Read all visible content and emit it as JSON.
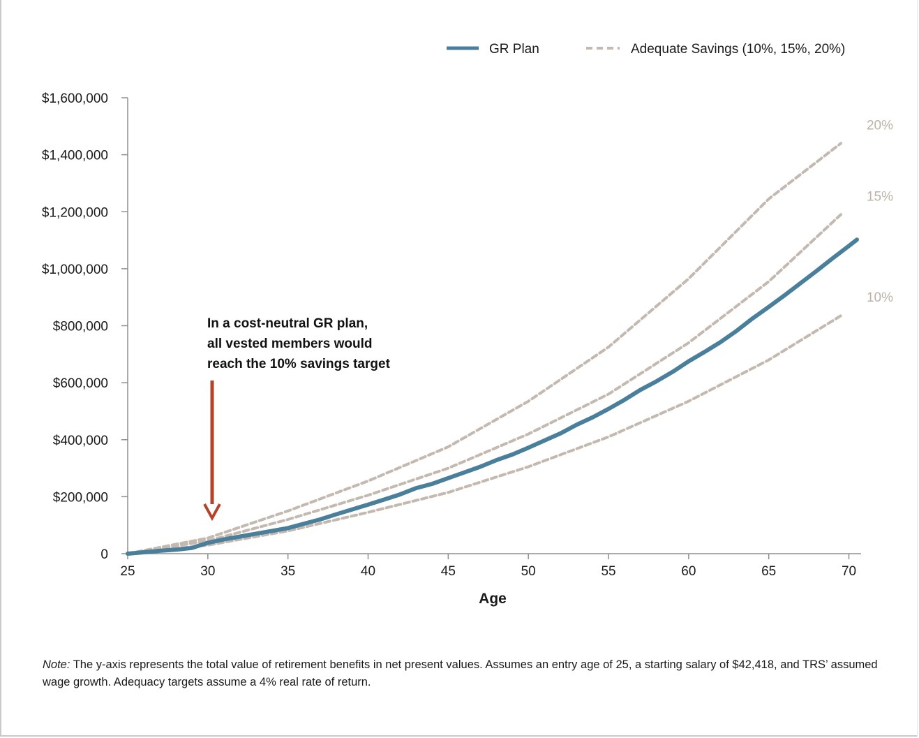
{
  "colors": {
    "gr_plan": "#4a7f9c",
    "adequate": "#c4b9b0",
    "axis": "#8f8f8f",
    "arrow": "#b5432a",
    "series_label": "#bdb2a8"
  },
  "legend": {
    "gr_plan_label": "GR Plan",
    "adequate_label": "Adequate Savings (10%, 15%, 20%)"
  },
  "annotation": {
    "lines": [
      "In a cost-neutral GR plan,",
      "all vested members would",
      "reach the 10% savings target"
    ],
    "arrow_icon": "down-arrow-icon"
  },
  "note": {
    "prefix": "Note:",
    "text": " The y-axis represents the total value of retirement benefits in net present values. Assumes an entry age of 25, a starting salary of $42,418, and TRS’ assumed wage growth. Adequacy targets assume a 4% real rate of return."
  },
  "chart_data": {
    "type": "line",
    "title": "",
    "xlabel": "Age",
    "ylabel": "",
    "xlim": [
      25,
      70.5
    ],
    "ylim": [
      0,
      1600000
    ],
    "xticks": [
      25,
      30,
      35,
      40,
      45,
      50,
      55,
      60,
      65,
      70
    ],
    "xtick_labels": [
      "25",
      "30",
      "35",
      "40",
      "45",
      "50",
      "55",
      "60",
      "65",
      "70"
    ],
    "yticks": [
      0,
      200000,
      400000,
      600000,
      800000,
      1000000,
      1200000,
      1400000,
      1600000
    ],
    "ytick_labels": [
      "0",
      "$200,000",
      "$400,000",
      "$600,000",
      "$800,000",
      "$1,000,000",
      "$1,200,000",
      "$1,400,000",
      "$1,600,000"
    ],
    "legend_position": "top-right",
    "grid": false,
    "series": [
      {
        "name": "GR Plan",
        "style": "solid",
        "x": [
          25,
          26,
          27,
          28,
          29,
          30,
          31,
          32,
          33,
          34,
          35,
          36,
          37,
          38,
          39,
          40,
          41,
          42,
          43,
          44,
          45,
          46,
          47,
          48,
          49,
          50,
          51,
          52,
          53,
          54,
          55,
          56,
          57,
          58,
          59,
          60,
          61,
          62,
          63,
          64,
          65,
          66,
          67,
          68,
          69,
          70,
          70.5
        ],
        "values": [
          0,
          5000,
          10000,
          14000,
          20000,
          38000,
          50000,
          60000,
          70000,
          80000,
          90000,
          105000,
          120000,
          138000,
          155000,
          172000,
          190000,
          208000,
          230000,
          245000,
          265000,
          285000,
          305000,
          328000,
          348000,
          372000,
          397000,
          422000,
          452000,
          478000,
          508000,
          540000,
          575000,
          605000,
          638000,
          675000,
          708000,
          743000,
          782000,
          826000,
          866000,
          907000,
          950000,
          993000,
          1037000,
          1080000,
          1102000
        ]
      },
      {
        "name": "10%",
        "style": "dashed",
        "x": [
          25,
          30,
          35,
          40,
          45,
          50,
          55,
          60,
          65,
          69.5
        ],
        "values": [
          0,
          30000,
          80000,
          145000,
          215000,
          305000,
          410000,
          535000,
          680000,
          835000
        ]
      },
      {
        "name": "15%",
        "style": "dashed",
        "x": [
          25,
          30,
          35,
          40,
          45,
          50,
          55,
          60,
          65,
          69.5
        ],
        "values": [
          0,
          45000,
          120000,
          205000,
          300000,
          420000,
          560000,
          740000,
          955000,
          1190000
        ]
      },
      {
        "name": "20%",
        "style": "dashed",
        "x": [
          25,
          30,
          35,
          40,
          45,
          50,
          55,
          60,
          65,
          69.5
        ],
        "values": [
          0,
          55000,
          150000,
          255000,
          375000,
          535000,
          725000,
          965000,
          1245000,
          1440000
        ]
      }
    ]
  }
}
